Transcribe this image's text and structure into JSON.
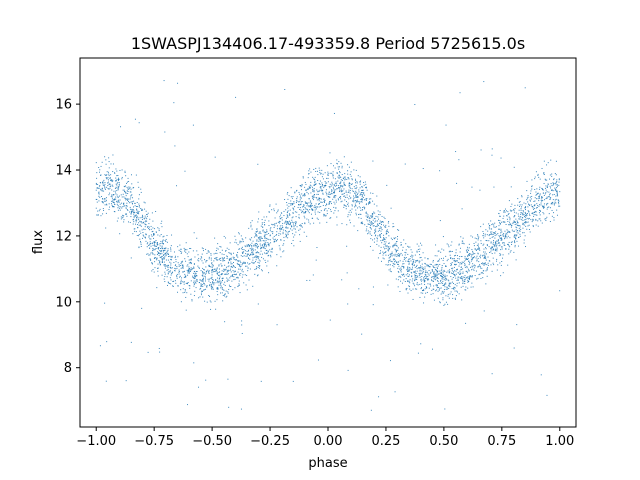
{
  "chart_data": {
    "type": "scatter",
    "title": "1SWASPJ134406.17-493359.8 Period 5725615.0s",
    "xlabel": "phase",
    "ylabel": "flux",
    "xlim": [
      -1.07,
      1.07
    ],
    "ylim": [
      6.2,
      17.4
    ],
    "xticks": [
      -1.0,
      -0.75,
      -0.5,
      -0.25,
      0.0,
      0.25,
      0.5,
      0.75,
      1.0
    ],
    "xtick_labels": [
      "−1.00",
      "−0.75",
      "−0.50",
      "−0.25",
      "0.00",
      "0.25",
      "0.50",
      "0.75",
      "1.00"
    ],
    "yticks": [
      8,
      10,
      12,
      14,
      16
    ],
    "ytick_labels": [
      "8",
      "10",
      "12",
      "14",
      "16"
    ],
    "grid": false,
    "marker_color": "#1f77b4",
    "series": [
      {
        "profile_phase": [
          0.0,
          0.05,
          0.1,
          0.15,
          0.2,
          0.25,
          0.3,
          0.35,
          0.4,
          0.45,
          0.5,
          0.55,
          0.6,
          0.65,
          0.7,
          0.75,
          0.8,
          0.85,
          0.9,
          0.95,
          1.0
        ],
        "profile_flux": [
          13.3,
          13.5,
          13.3,
          13.0,
          12.4,
          11.7,
          11.3,
          11.0,
          10.9,
          10.8,
          10.8,
          10.9,
          11.1,
          11.4,
          11.7,
          12.0,
          12.3,
          12.6,
          13.0,
          13.3,
          13.3
        ],
        "flux_spread": 0.8,
        "phase_range": [
          -1.0,
          1.0
        ],
        "outlier_range": [
          6.7,
          16.9
        ]
      }
    ]
  }
}
